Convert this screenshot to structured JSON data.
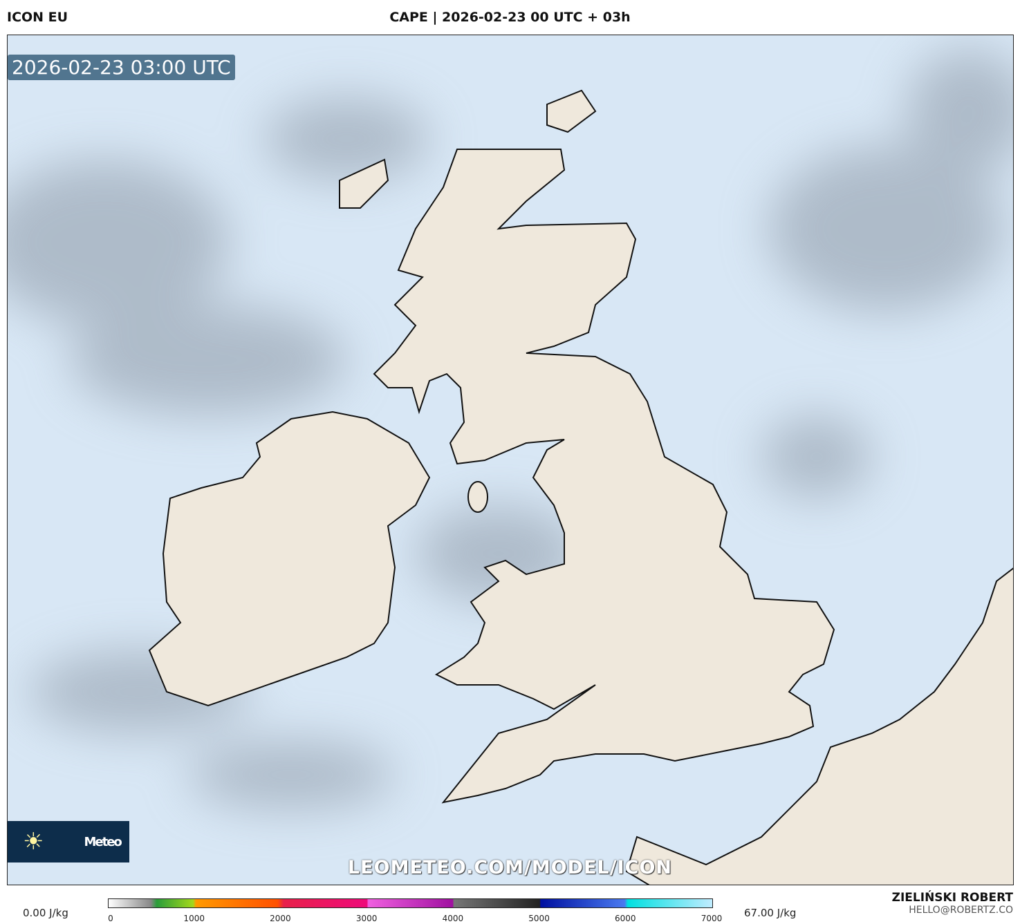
{
  "header": {
    "model": "ICON EU",
    "title": "CAPE | 2026-02-23 00 UTC + 03h"
  },
  "map": {
    "valid_time": "2026-02-23 03:00 UTC",
    "watermark": "LEOMETEO.COM/MODEL/ICON",
    "logo_text": "Meteo",
    "logo_icon": "sun-icon",
    "sea_color": "#d8e7f5",
    "land_color": "#efe8dc"
  },
  "legend": {
    "min_label": "0.00 J/kg",
    "max_label": "67.00 J/kg",
    "ticks": [
      "0",
      "1000",
      "2000",
      "3000",
      "4000",
      "5000",
      "6000",
      "7000"
    ],
    "range": [
      0,
      7000
    ]
  },
  "author": {
    "name": "ZIELIŃSKI ROBERT",
    "email": "HELLO@ROBERTZ.CO"
  }
}
